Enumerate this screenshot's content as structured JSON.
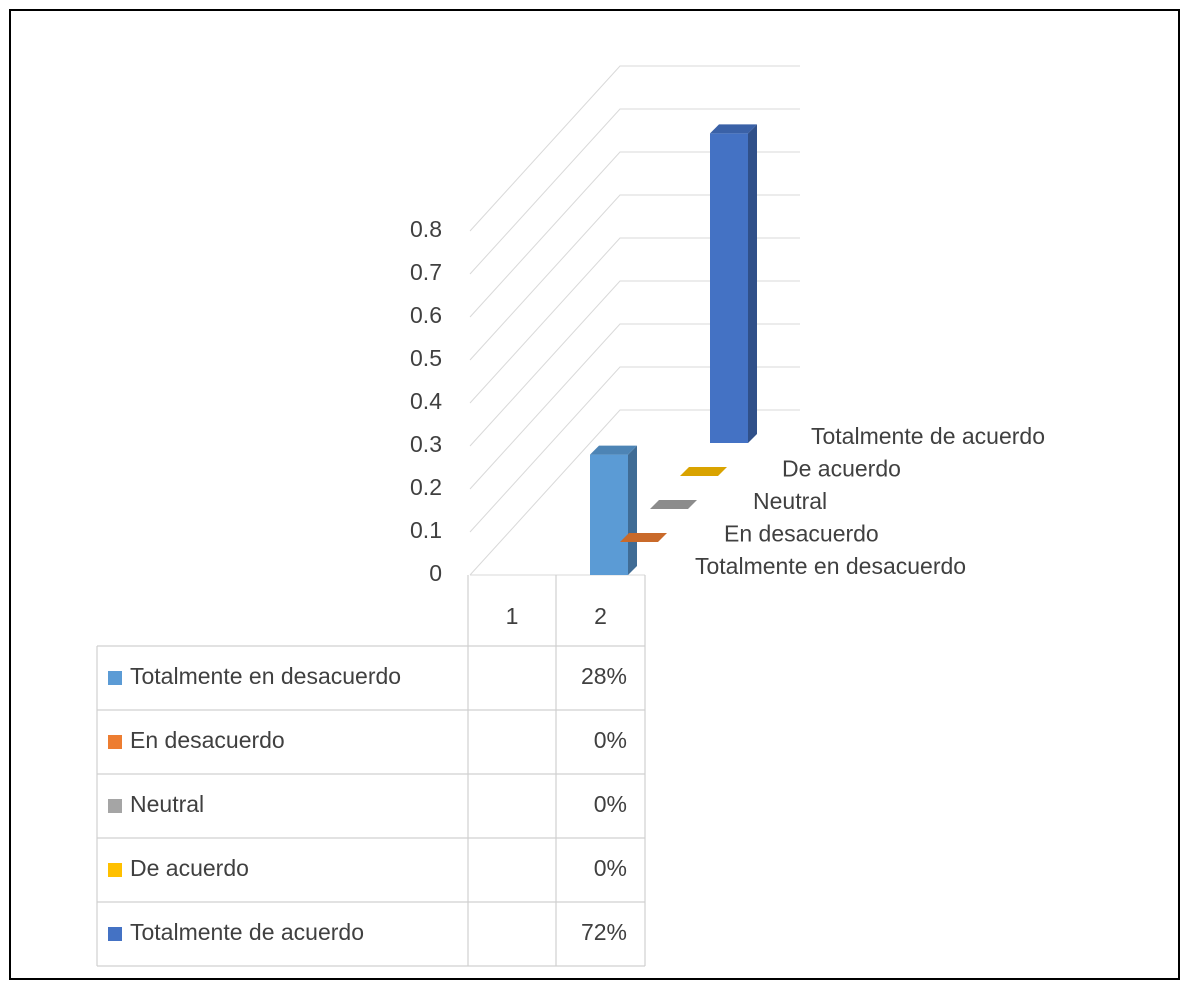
{
  "chart_data": {
    "type": "bar3d",
    "categories": [
      "1",
      "2"
    ],
    "series": [
      {
        "name": "Totalmente en desacuerdo",
        "color": "#5B9BD5",
        "values": [
          null,
          0.28
        ],
        "value_labels": [
          null,
          "28%"
        ]
      },
      {
        "name": "En desacuerdo",
        "color": "#ED7D31",
        "values": [
          null,
          0
        ],
        "value_labels": [
          null,
          "0%"
        ]
      },
      {
        "name": "Neutral",
        "color": "#A5A5A5",
        "values": [
          null,
          0
        ],
        "value_labels": [
          null,
          "0%"
        ]
      },
      {
        "name": "De acuerdo",
        "color": "#FFC000",
        "values": [
          null,
          0
        ],
        "value_labels": [
          null,
          "0%"
        ]
      },
      {
        "name": "Totalmente de acuerdo",
        "color": "#4472C4",
        "values": [
          null,
          0.72
        ],
        "value_labels": [
          null,
          "72%"
        ]
      }
    ],
    "ylim": [
      0,
      0.8
    ],
    "yticks": [
      0,
      0.1,
      0.2,
      0.3,
      0.4,
      0.5,
      0.6,
      0.7,
      0.8
    ],
    "grid": true
  }
}
